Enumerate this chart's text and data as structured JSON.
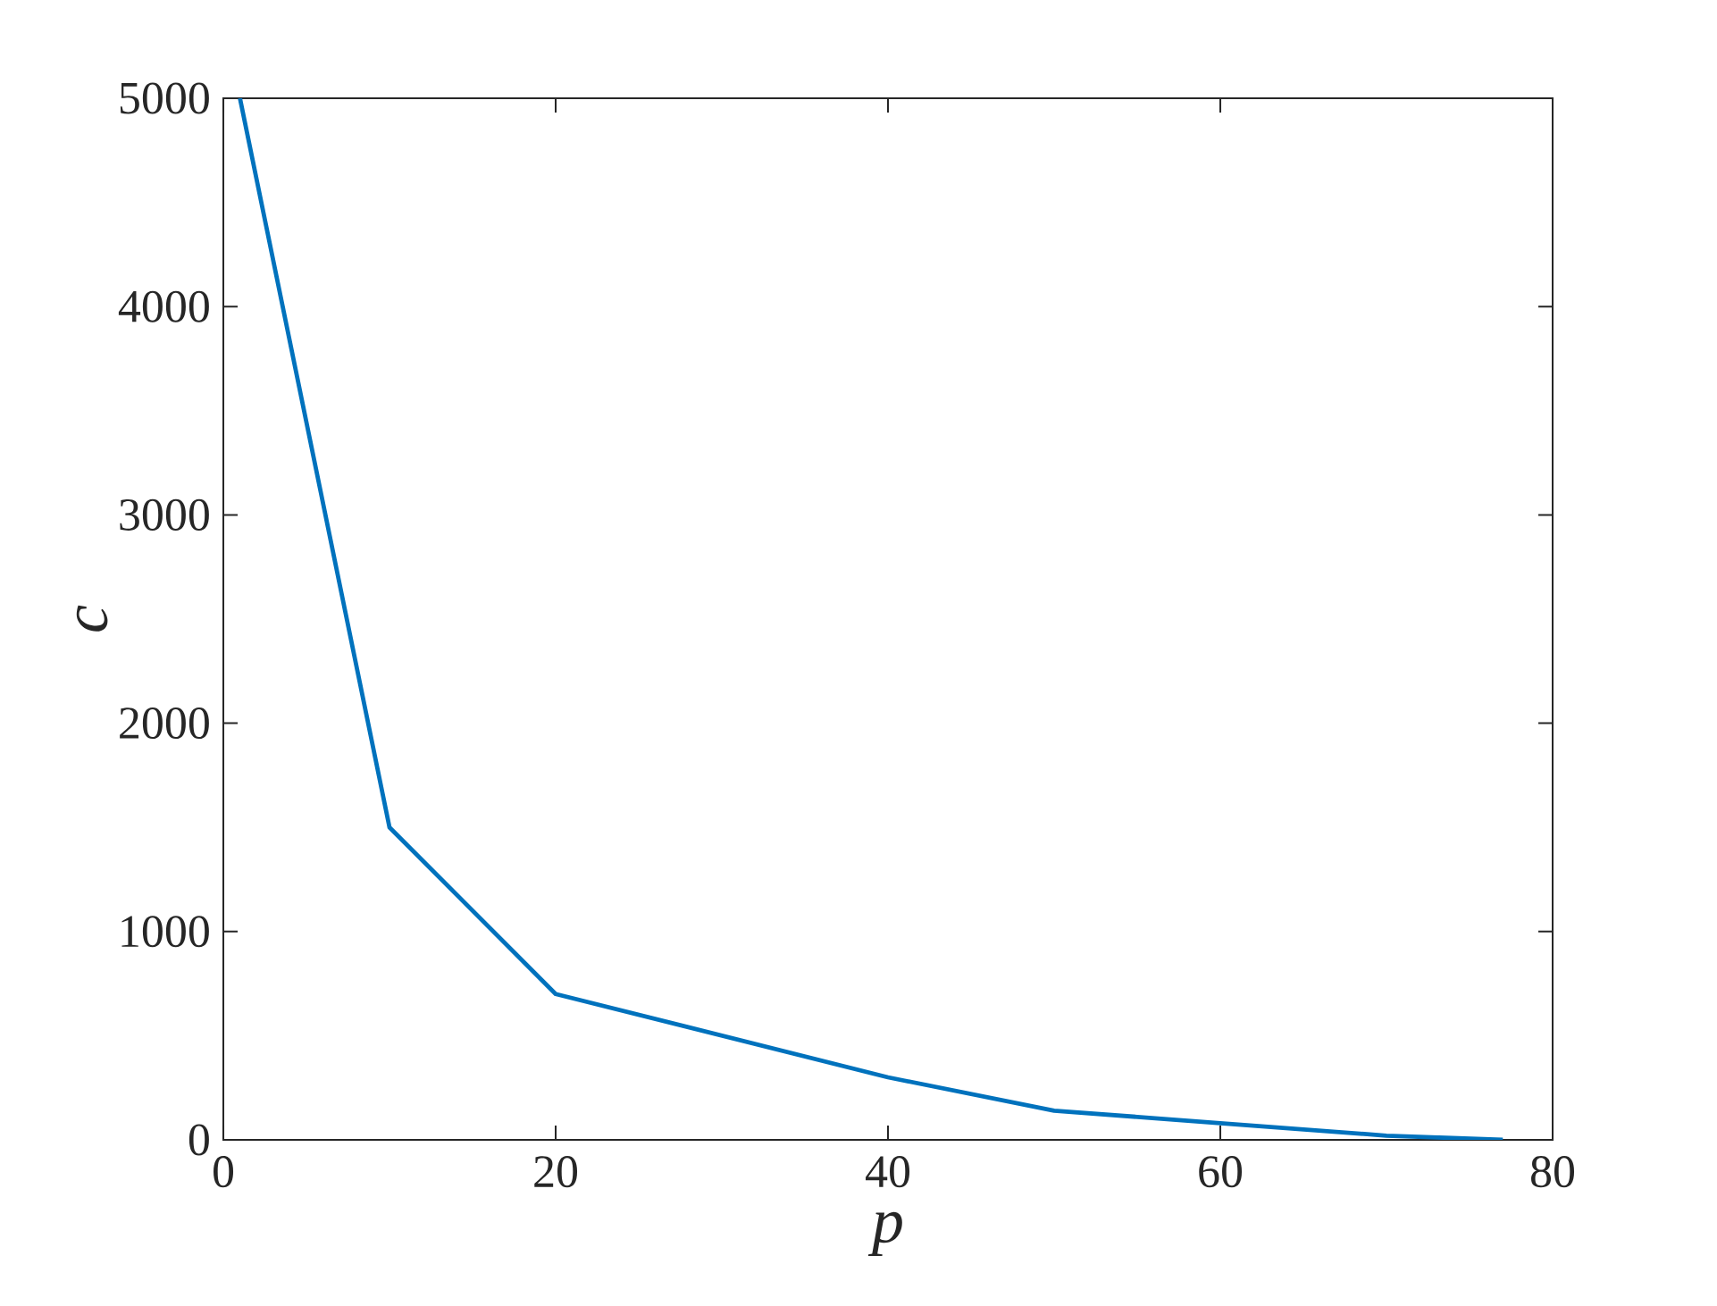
{
  "chart_data": {
    "type": "line",
    "xlabel": "*p*",
    "ylabel": "*c*",
    "x": [
      1,
      10,
      20,
      40,
      50,
      60,
      70,
      77
    ],
    "series": [
      {
        "color": "#0072bd",
        "values": [
          5000,
          1500,
          700,
          300,
          140,
          80,
          20,
          0
        ]
      }
    ],
    "xlim": [
      0,
      80
    ],
    "xticks": [
      0,
      20,
      40,
      60,
      80
    ],
    "ylim": [
      0,
      5000
    ],
    "yticks": [
      0,
      1000,
      2000,
      3000,
      4000,
      5000
    ],
    "marker": "none",
    "line_style": "solid"
  }
}
